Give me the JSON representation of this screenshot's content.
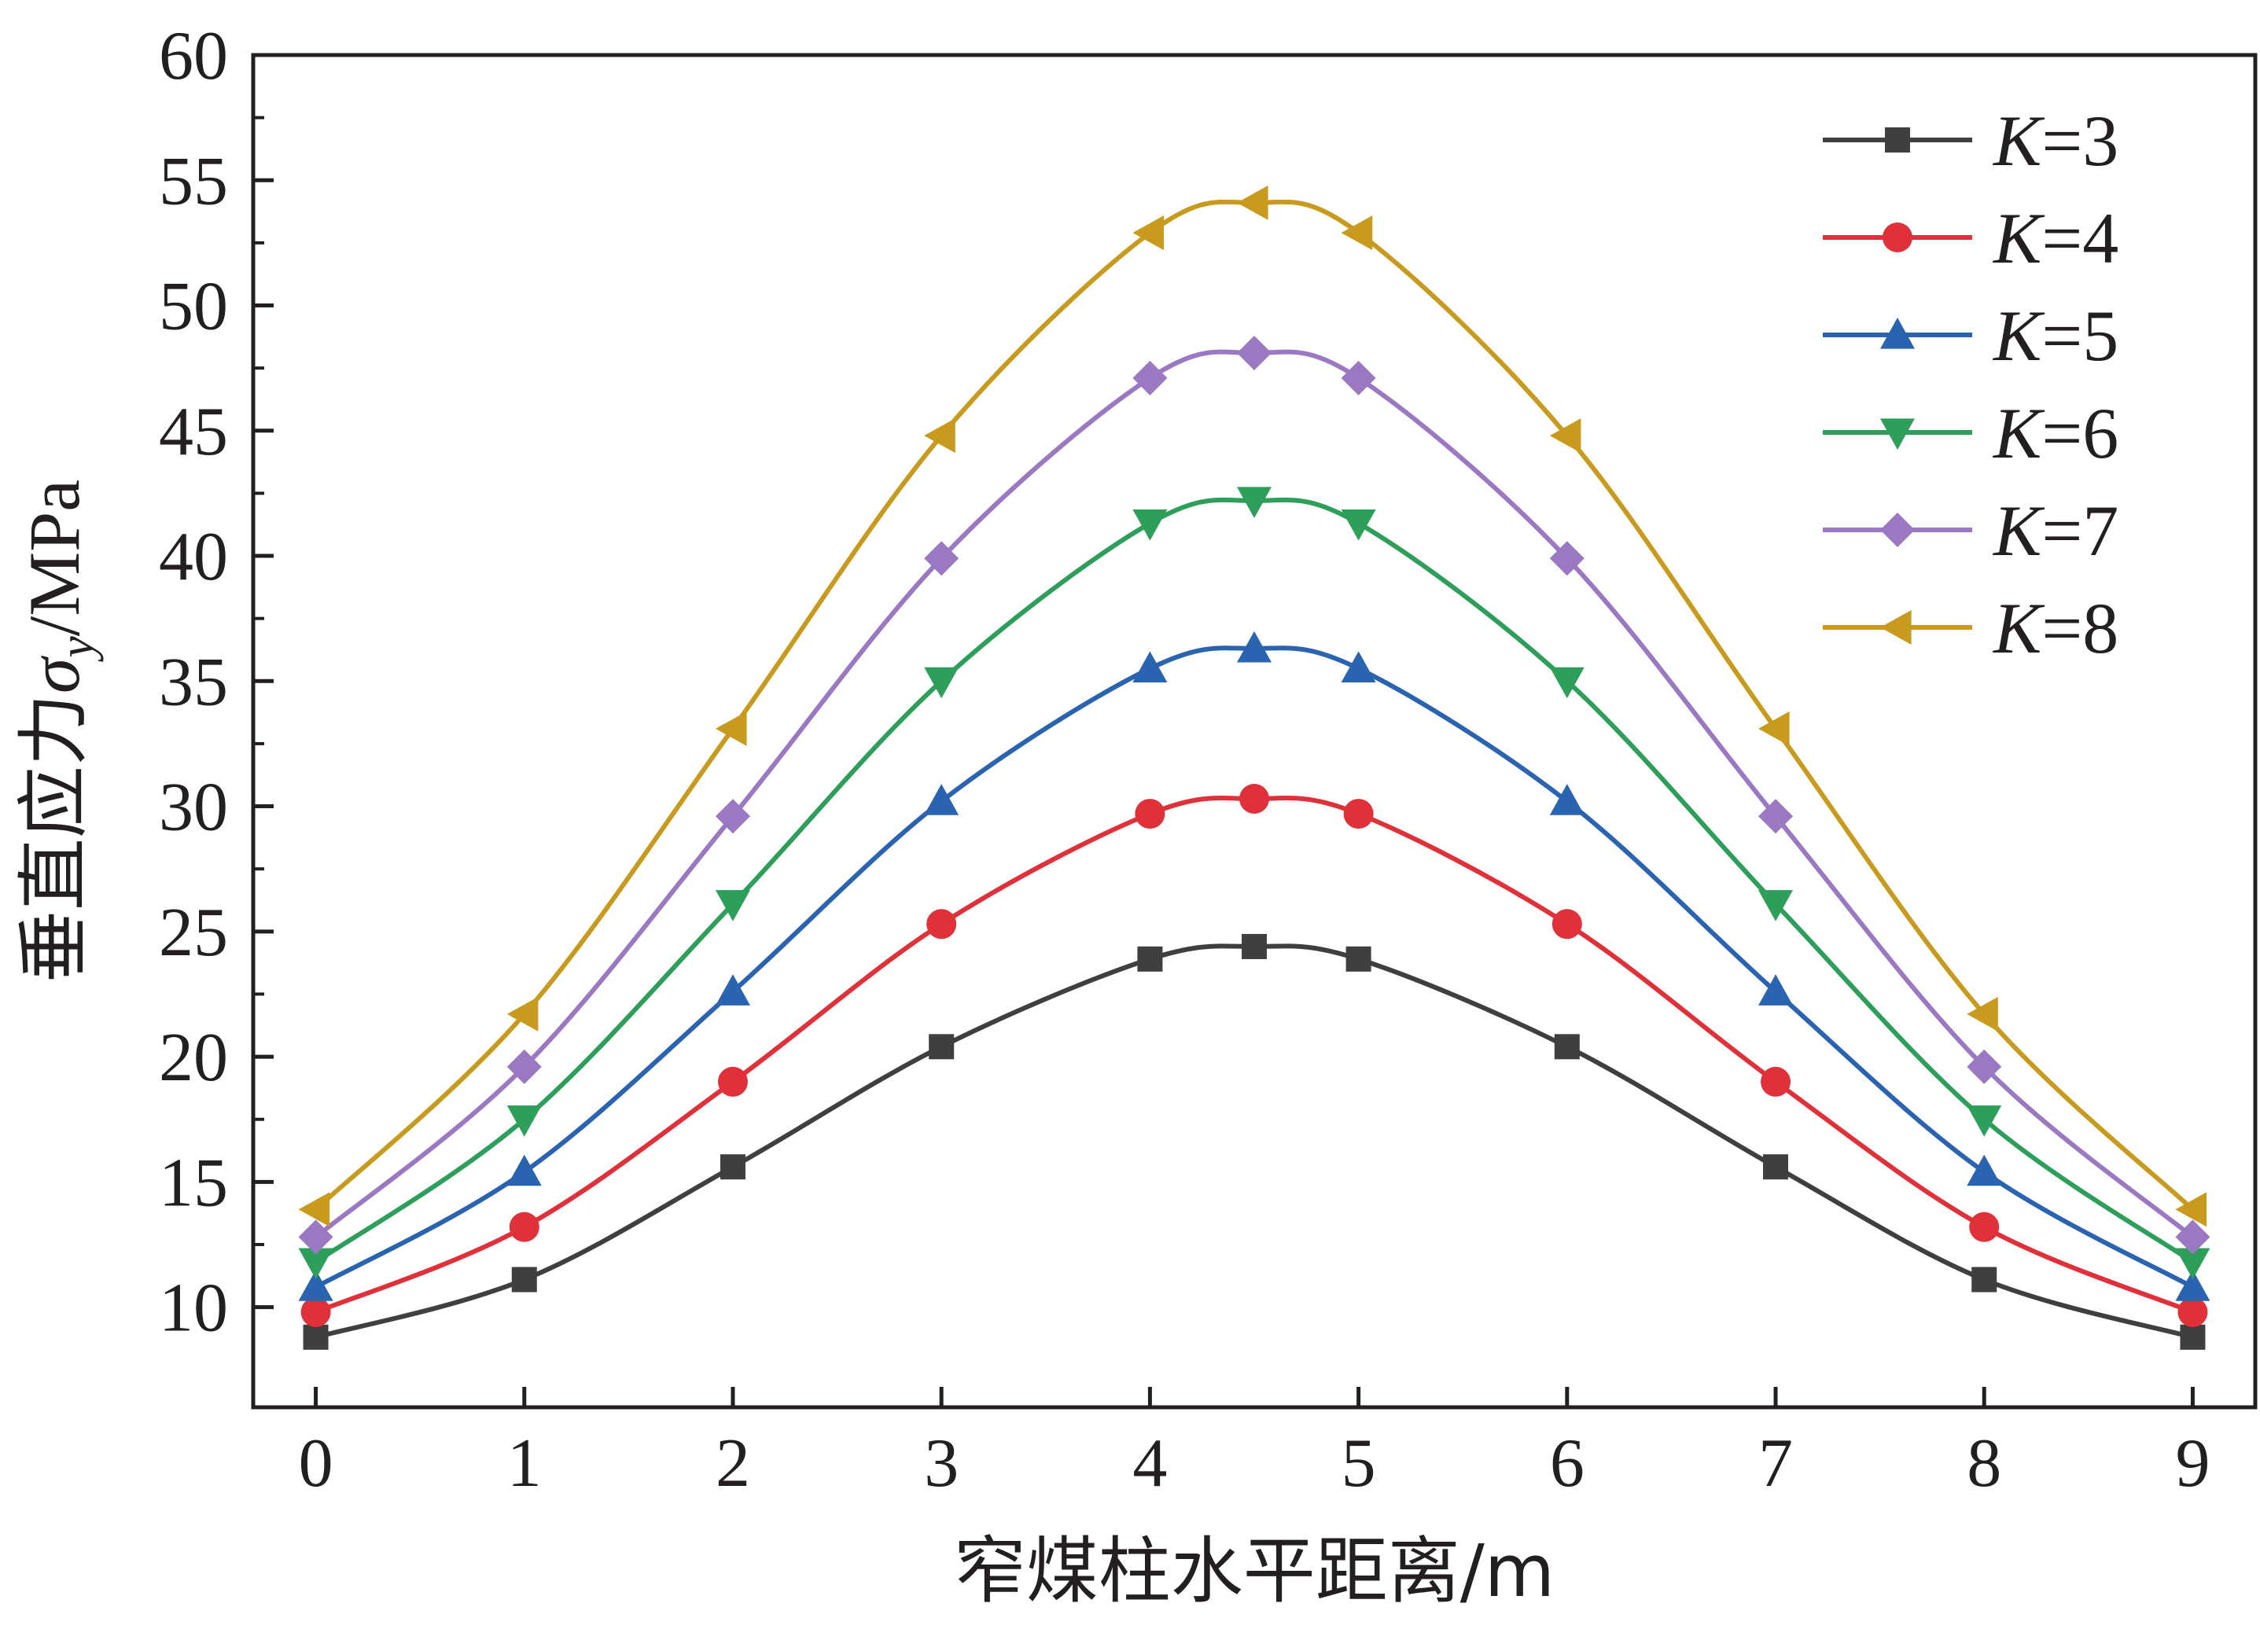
{
  "chart_data": {
    "type": "line",
    "xlabel": "窄煤柱水平距离/m",
    "ylabel_prefix": "垂直应力",
    "ylabel_symbol": "σ",
    "ylabel_subscript": "y",
    "ylabel_suffix": "/MPa",
    "x": [
      0,
      1,
      2,
      3,
      4,
      4.5,
      5,
      6,
      7,
      8,
      9
    ],
    "xlim": [
      -0.3,
      9.3
    ],
    "ylim": [
      6,
      60
    ],
    "xticks": [
      0,
      1,
      2,
      3,
      4,
      5,
      6,
      7,
      8,
      9
    ],
    "yticks": [
      10,
      15,
      20,
      25,
      30,
      35,
      40,
      45,
      50,
      55,
      60
    ],
    "legend_position": "top-right",
    "legend_var": "K",
    "series": [
      {
        "name": "=3",
        "color": "#3f3f3f",
        "marker": "square",
        "values": [
          8.8,
          11.1,
          15.6,
          20.4,
          23.9,
          24.4,
          23.9,
          20.4,
          15.6,
          11.1,
          8.8
        ]
      },
      {
        "name": "=4",
        "color": "#e0303a",
        "marker": "circle",
        "values": [
          9.8,
          13.2,
          19.0,
          25.3,
          29.7,
          30.3,
          29.7,
          25.3,
          19.0,
          13.2,
          9.8
        ]
      },
      {
        "name": "=5",
        "color": "#2a63b0",
        "marker": "triangle-up",
        "values": [
          10.8,
          15.4,
          22.6,
          30.2,
          35.5,
          36.3,
          35.5,
          30.2,
          22.6,
          15.4,
          10.8
        ]
      },
      {
        "name": "=6",
        "color": "#2e9e5b",
        "marker": "triangle-down",
        "values": [
          11.8,
          17.5,
          26.1,
          35.0,
          41.3,
          42.2,
          41.3,
          35.0,
          26.1,
          17.5,
          11.8
        ]
      },
      {
        "name": "=7",
        "color": "#9b79c2",
        "marker": "diamond",
        "values": [
          12.8,
          19.6,
          29.6,
          39.9,
          47.1,
          48.1,
          47.1,
          39.9,
          29.6,
          19.6,
          12.8
        ]
      },
      {
        "name": "=8",
        "color": "#c89a1e",
        "marker": "triangle-left",
        "values": [
          13.9,
          21.7,
          33.1,
          44.8,
          52.9,
          54.1,
          52.9,
          44.8,
          33.1,
          21.7,
          13.9
        ]
      }
    ]
  }
}
